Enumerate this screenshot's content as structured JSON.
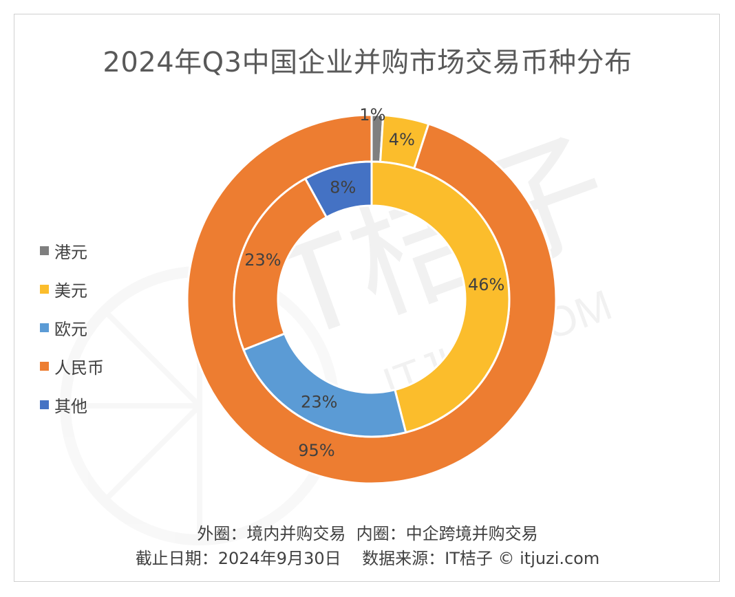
{
  "chart_data": {
    "type": "donut",
    "title": "2024年Q3中国企业并购市场交易币种分布",
    "categories": [
      "港元",
      "美元",
      "欧元",
      "人民币",
      "其他"
    ],
    "colors": {
      "港元": "#7f7f7f",
      "美元": "#fbbd2c",
      "欧元": "#5b9bd5",
      "人民币": "#ed7d31",
      "其他": "#4472c4"
    },
    "series": [
      {
        "name": "外圈：境内并购交易",
        "ring": "outer",
        "slices": [
          {
            "category": "港元",
            "value": 1,
            "label": "1%"
          },
          {
            "category": "美元",
            "value": 4,
            "label": "4%"
          },
          {
            "category": "人民币",
            "value": 95,
            "label": "95%"
          }
        ]
      },
      {
        "name": "内圈：中企跨境并购交易",
        "ring": "inner",
        "slices": [
          {
            "category": "美元",
            "value": 46,
            "label": "46%"
          },
          {
            "category": "欧元",
            "value": 23,
            "label": "23%"
          },
          {
            "category": "人民币",
            "value": 23,
            "label": "23%"
          },
          {
            "category": "其他",
            "value": 8,
            "label": "8%"
          }
        ]
      }
    ],
    "legend_position": "left"
  },
  "legend": [
    {
      "label": "港元",
      "color": "#7f7f7f"
    },
    {
      "label": "美元",
      "color": "#fbbd2c"
    },
    {
      "label": "欧元",
      "color": "#5b9bd5"
    },
    {
      "label": "人民币",
      "color": "#ed7d31"
    },
    {
      "label": "其他",
      "color": "#4472c4"
    }
  ],
  "footer": {
    "line1_outer": "外圈：境内并购交易",
    "line1_inner": "内圈：中企跨境并购交易",
    "line2_date": "截止日期：2024年9月30日",
    "line2_source": "数据来源：IT桔子 © itjuzi.com"
  },
  "watermark": {
    "logo_text": "IT桔子",
    "url_text": "ITJUZI.COM"
  }
}
